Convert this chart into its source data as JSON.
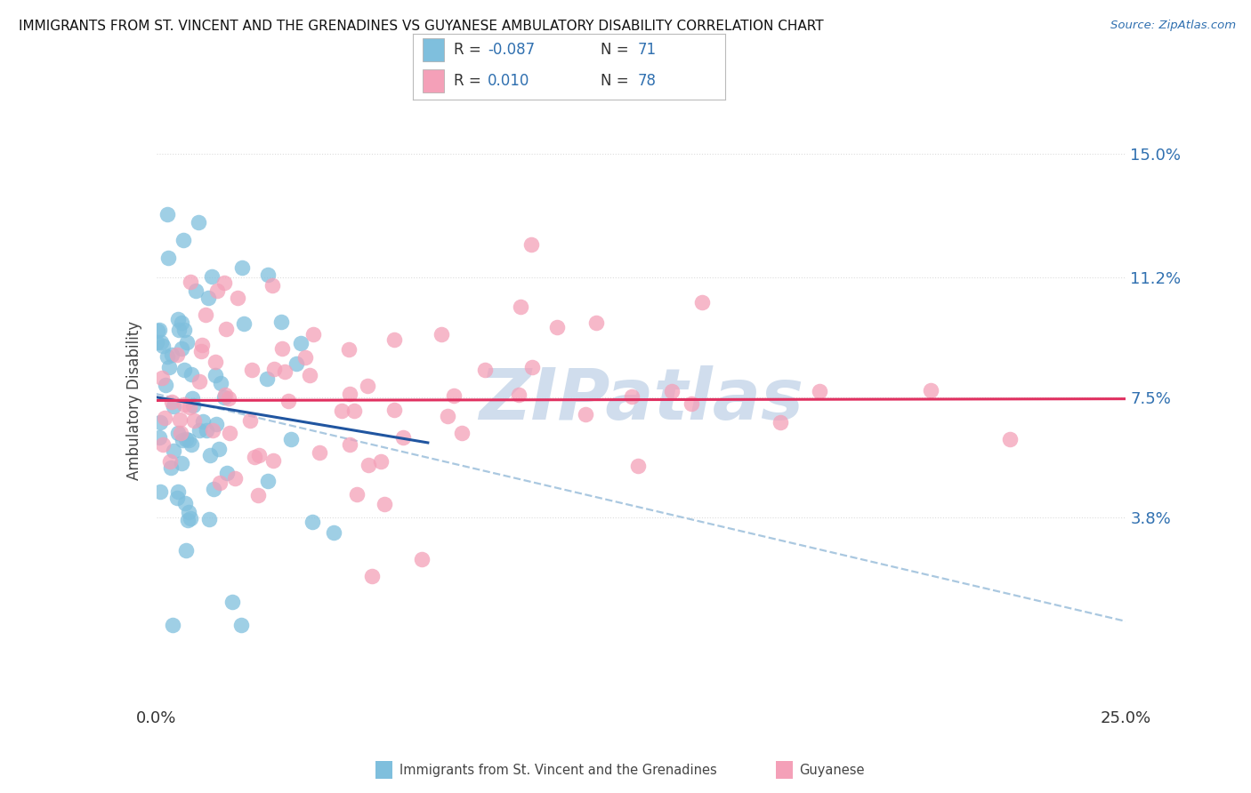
{
  "title": "IMMIGRANTS FROM ST. VINCENT AND THE GRENADINES VS GUYANESE AMBULATORY DISABILITY CORRELATION CHART",
  "source": "Source: ZipAtlas.com",
  "ylabel": "Ambulatory Disability",
  "yticks": [
    0.038,
    0.075,
    0.112,
    0.15
  ],
  "ytick_labels": [
    "3.8%",
    "7.5%",
    "11.2%",
    "15.0%"
  ],
  "xlim": [
    0.0,
    0.25
  ],
  "ylim": [
    -0.02,
    0.168
  ],
  "series1_name": "Immigrants from St. Vincent and the Grenadines",
  "series1_color": "#7fbfdd",
  "series1_line_color": "#2055a0",
  "series1_R": -0.087,
  "series1_N": 71,
  "series2_name": "Guyanese",
  "series2_color": "#f4a0b8",
  "series2_line_color": "#e03060",
  "series2_R": 0.01,
  "series2_N": 78,
  "label_color": "#3070b0",
  "watermark_text": "ZIPatlas",
  "watermark_color": "#c8d8ea",
  "background_color": "#ffffff",
  "grid_color": "#dddddd",
  "dashed_line_color": "#aac8e0"
}
